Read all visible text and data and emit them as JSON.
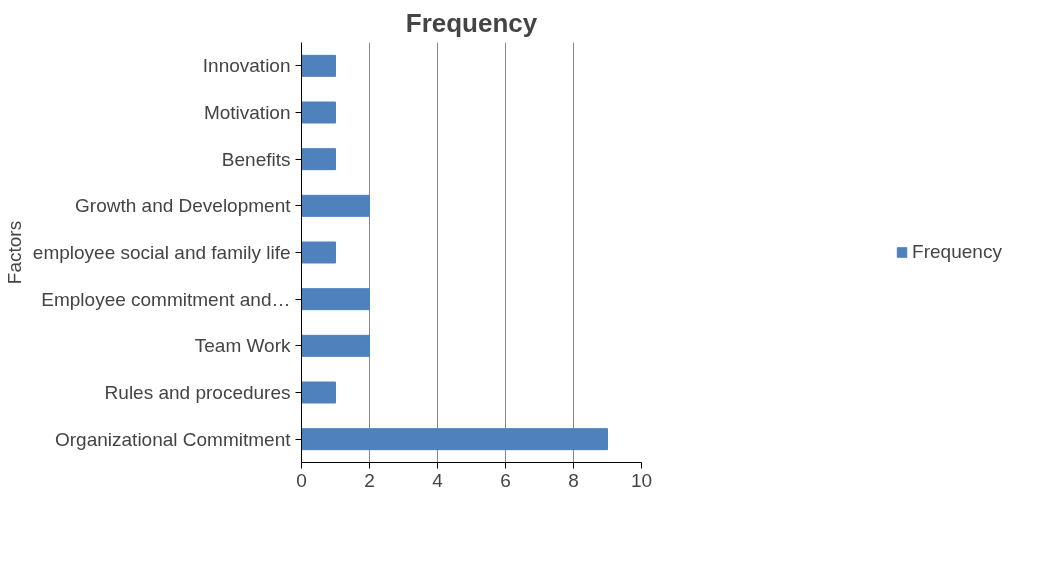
{
  "chart_data": {
    "type": "bar",
    "orientation": "horizontal",
    "title": "Frequency",
    "ylabel": "Factors",
    "categories": [
      "Innovation",
      "Motivation",
      "Benefits",
      "Growth and Development",
      "employee social and family life",
      "Employee commitment and…",
      "Team Work",
      "Rules and procedures",
      "Organizational Commitment"
    ],
    "series": [
      {
        "name": "Frequency",
        "color": "#4f81bd",
        "values": [
          1,
          1,
          1,
          2,
          1,
          2,
          2,
          1,
          9
        ]
      }
    ],
    "xlim": [
      0,
      10
    ],
    "xticks": [
      0,
      2,
      4,
      6,
      8,
      10
    ],
    "grid": "x",
    "legend": "right"
  }
}
